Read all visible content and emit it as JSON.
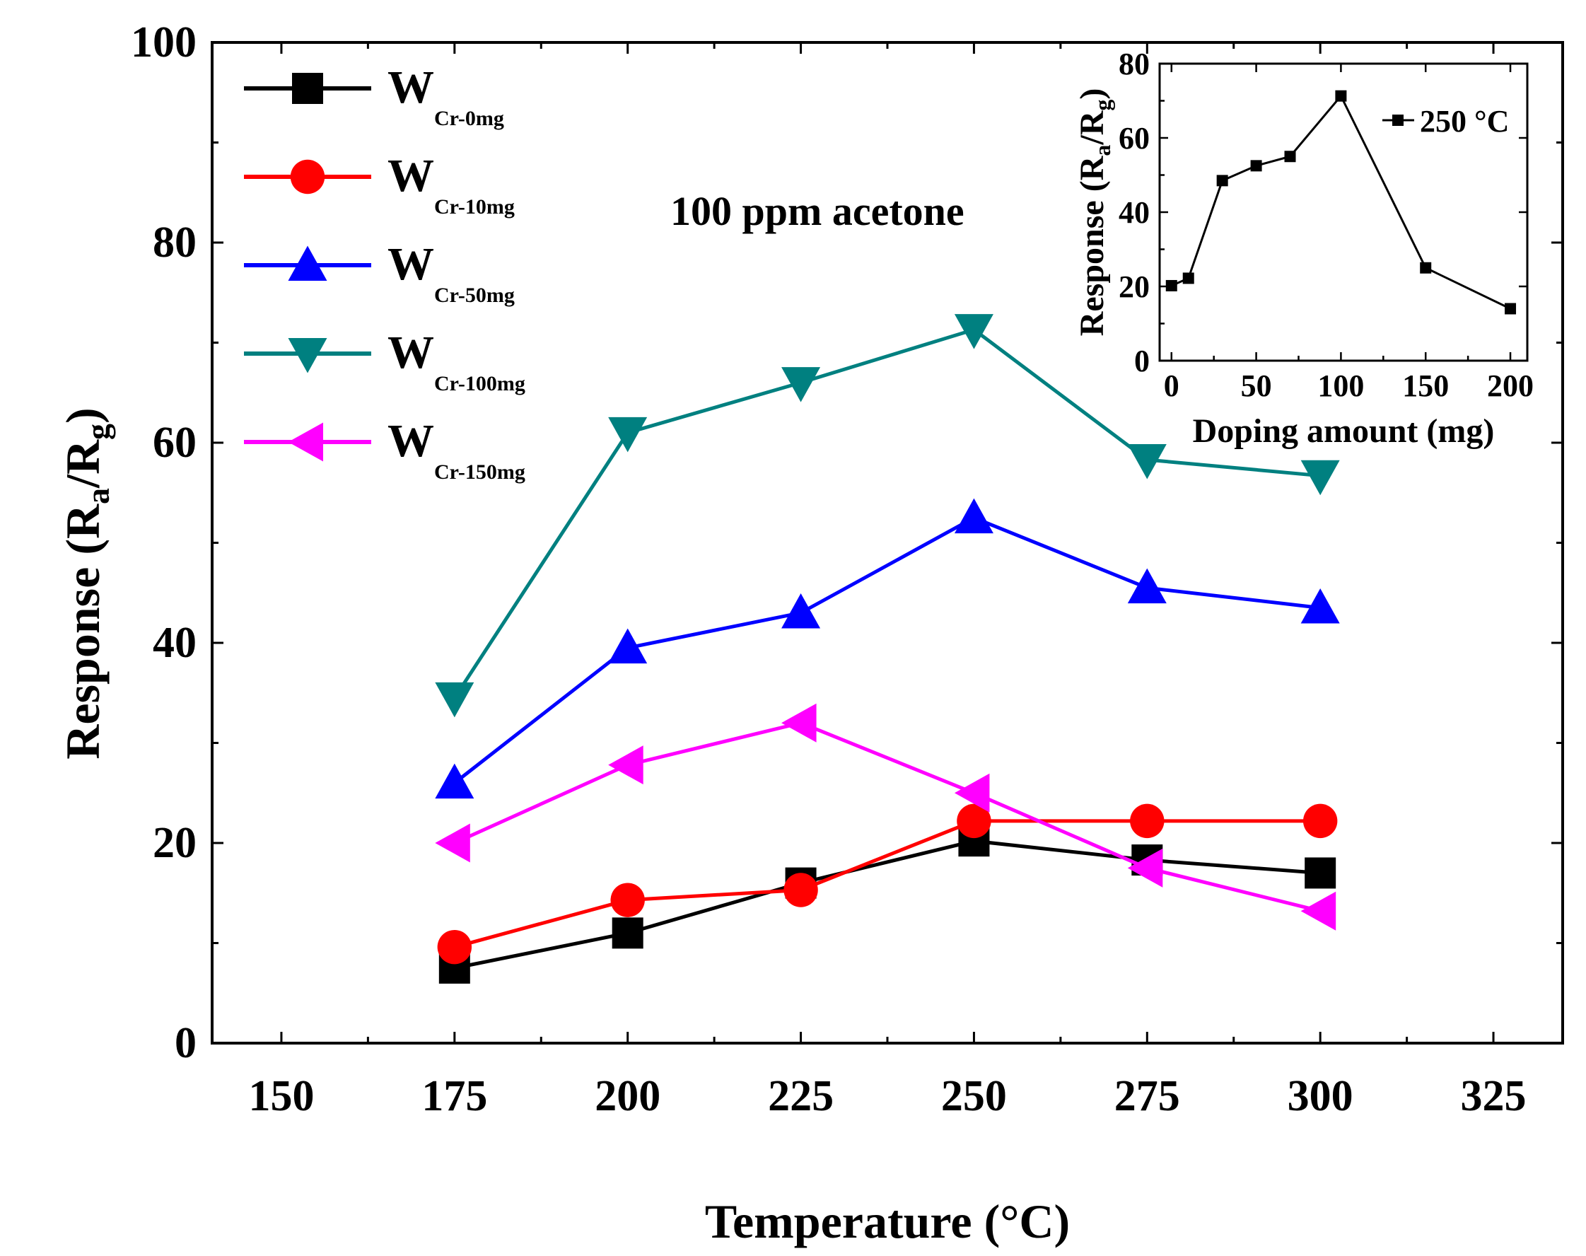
{
  "chart_data": [
    {
      "type": "line",
      "title": "100 ppm acetone",
      "xlabel": "Temperature (°C)",
      "ylabel_main": "Response (R",
      "ylabel_sub1": "a",
      "ylabel_mid": "/R",
      "ylabel_sub2": "g",
      "ylabel_end": ")",
      "xlim": [
        140,
        335
      ],
      "ylim": [
        0,
        100
      ],
      "xticks": [
        150,
        175,
        200,
        225,
        250,
        275,
        300,
        325
      ],
      "yticks": [
        0,
        20,
        40,
        60,
        80,
        100
      ],
      "legend_position": "top-left",
      "x": [
        175,
        200,
        225,
        250,
        275,
        300
      ],
      "series": [
        {
          "name": "W",
          "sub": "Cr-0mg",
          "color": "#000000",
          "marker": "square",
          "values": [
            7.5,
            11,
            16,
            20.2,
            18.3,
            17
          ]
        },
        {
          "name": "W",
          "sub": "Cr-10mg",
          "color": "#ff0000",
          "marker": "circle",
          "values": [
            9.6,
            14.3,
            15.3,
            22.2,
            22.2,
            22.2
          ]
        },
        {
          "name": "W",
          "sub": "Cr-50mg",
          "color": "#0000ff",
          "marker": "triangle-up",
          "values": [
            26,
            39.5,
            43,
            52.5,
            45.5,
            43.5
          ]
        },
        {
          "name": "W",
          "sub": "Cr-100mg",
          "color": "#008080",
          "marker": "triangle-down",
          "values": [
            34.5,
            61,
            66,
            71.3,
            58.3,
            56.7
          ]
        },
        {
          "name": "W",
          "sub": "Cr-150mg",
          "color": "#ff00ff",
          "marker": "triangle-left",
          "values": [
            20,
            27.8,
            32,
            25,
            17.5,
            13.2
          ]
        }
      ]
    },
    {
      "type": "line",
      "inset": true,
      "xlabel": "Doping amount (mg)",
      "ylabel_main": "Response (R",
      "ylabel_sub1": "a",
      "ylabel_mid": "/R",
      "ylabel_sub2": "g",
      "ylabel_end": ")",
      "xlim": [
        -7,
        210
      ],
      "ylim": [
        0,
        80
      ],
      "xticks": [
        0,
        50,
        100,
        150,
        200
      ],
      "yticks": [
        0,
        20,
        40,
        60,
        80
      ],
      "legend_position": "top-right",
      "series": [
        {
          "name": "250 °C",
          "color": "#000000",
          "marker": "square",
          "x": [
            0,
            10,
            30,
            50,
            70,
            100,
            150,
            200
          ],
          "values": [
            20.2,
            22.2,
            48.5,
            52.5,
            55,
            71.3,
            25,
            14
          ]
        }
      ]
    }
  ]
}
